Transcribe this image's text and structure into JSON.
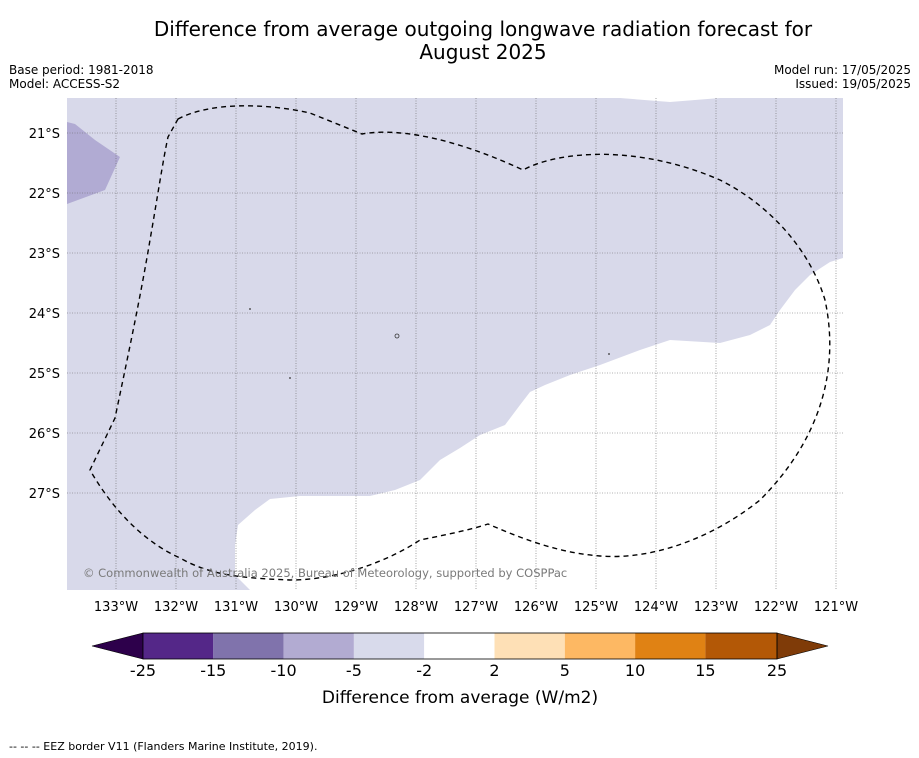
{
  "header": {
    "title_line1": "Difference from average outgoing longwave radiation forecast for",
    "title_line2": "August 2025",
    "base_period": "Base period: 1981-2018",
    "model": "Model: ACCESS-S2",
    "model_run": "Model run: 17/05/2025",
    "issued": "Issued: 19/05/2025"
  },
  "map": {
    "lat_labels": [
      "21°S",
      "22°S",
      "23°S",
      "24°S",
      "25°S",
      "26°S",
      "27°S"
    ],
    "lon_labels": [
      "133°W",
      "132°W",
      "131°W",
      "130°W",
      "129°W",
      "128°W",
      "127°W",
      "126°W",
      "125°W",
      "124°W",
      "123°W",
      "122°W",
      "121°W"
    ],
    "copyright": "© Commonwealth of Australia 2025, Bureau of Meteorology, supported by COSPPac",
    "fill_colors": {
      "band_-5_-2": "#d8d9ea",
      "band_-10_-5": "#b1abd3",
      "band_-2_2": "#ffffff"
    }
  },
  "legend": {
    "ticks": [
      "-25",
      "-15",
      "-10",
      "-5",
      "-2",
      "2",
      "5",
      "10",
      "15",
      "25"
    ],
    "colors": [
      "#2d004b",
      "#542788",
      "#8073ac",
      "#b2abd2",
      "#d8daeb",
      "#ffffff",
      "#fee0b6",
      "#fdb863",
      "#e08214",
      "#b35806",
      "#7f3b08"
    ],
    "label": "Difference from average (W/m2)"
  },
  "footnote": "--  --  -- EEZ border V11 (Flanders Marine Institute, 2019)."
}
